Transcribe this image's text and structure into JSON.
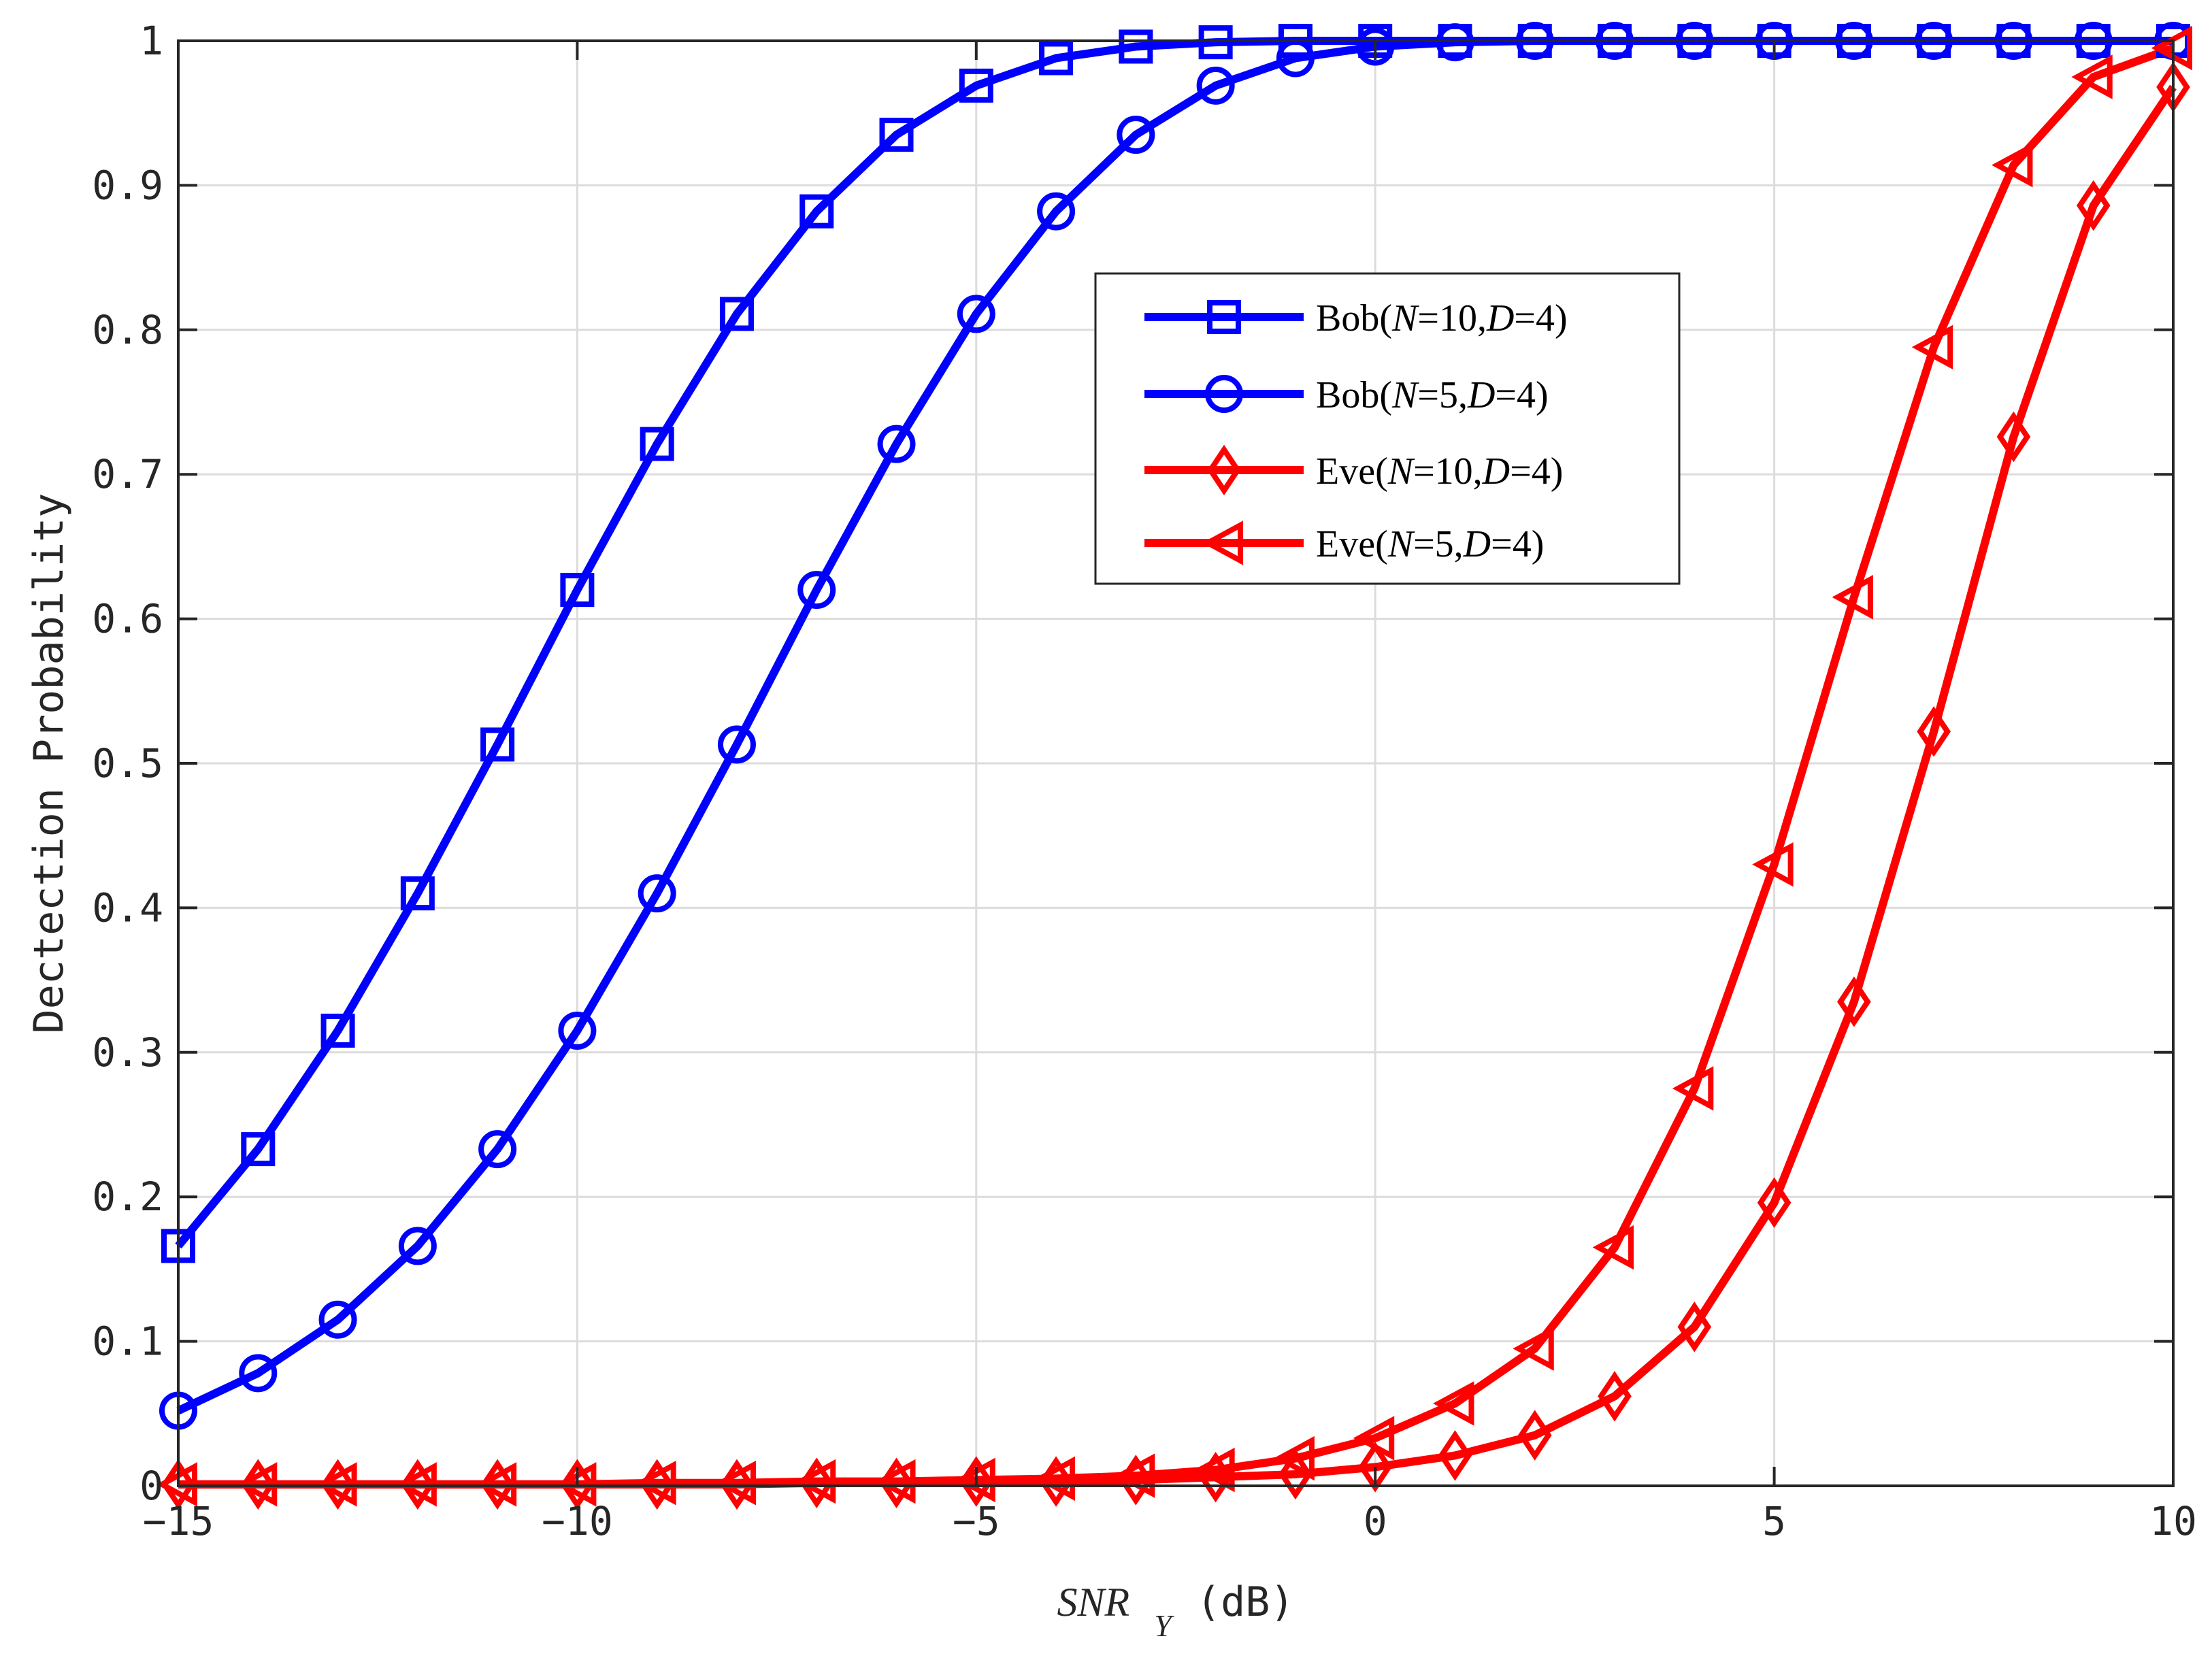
{
  "chart_data": {
    "type": "line",
    "title": "",
    "xlabel": "SNR",
    "xlabel_sub": "Y",
    "xlabel_unit": "(dB)",
    "ylabel": "Dectection Probability",
    "xlim": [
      -15,
      10
    ],
    "ylim": [
      0,
      1
    ],
    "grid": true,
    "legend_position": "upper-center",
    "x_ticks": [
      -15,
      -10,
      -5,
      0,
      5,
      10
    ],
    "x_tick_labels": [
      "−15",
      "−10",
      "−5",
      "0",
      "5",
      "10"
    ],
    "y_ticks": [
      0,
      0.1,
      0.2,
      0.3,
      0.4,
      0.5,
      0.6,
      0.7,
      0.8,
      0.9,
      1
    ],
    "y_tick_labels": [
      "0",
      "0.1",
      "0.2",
      "0.3",
      "0.4",
      "0.5",
      "0.6",
      "0.7",
      "0.8",
      "0.9",
      "1"
    ],
    "x": [
      -15,
      -14,
      -13,
      -12,
      -11,
      -10,
      -9,
      -8,
      -7,
      -6,
      -5,
      -4,
      -3,
      -2,
      -1,
      0,
      1,
      2,
      3,
      4,
      5,
      6,
      7,
      8,
      9,
      10
    ],
    "series": [
      {
        "name": "Bob(N=10,D=4)",
        "legend_parts": [
          [
            "Bob(",
            ""
          ],
          [
            "N",
            "it"
          ],
          [
            "=10,",
            ""
          ],
          [
            "D",
            "it"
          ],
          [
            "=4)",
            ""
          ]
        ],
        "color": "#0000ff",
        "marker": "square",
        "values": [
          0.166,
          0.233,
          0.315,
          0.41,
          0.513,
          0.62,
          0.721,
          0.811,
          0.882,
          0.935,
          0.969,
          0.988,
          0.996,
          0.999,
          1.0,
          1.0,
          1.0,
          1.0,
          1.0,
          1.0,
          1.0,
          1.0,
          1.0,
          1.0,
          1.0,
          1.0
        ]
      },
      {
        "name": "Bob(N=5,D=4)",
        "legend_parts": [
          [
            "Bob(",
            ""
          ],
          [
            "N",
            "it"
          ],
          [
            "=5,",
            ""
          ],
          [
            "D",
            "it"
          ],
          [
            "=4)",
            ""
          ]
        ],
        "color": "#0000ff",
        "marker": "circle",
        "values": [
          0.052,
          0.078,
          0.115,
          0.166,
          0.233,
          0.315,
          0.41,
          0.513,
          0.62,
          0.721,
          0.811,
          0.882,
          0.935,
          0.969,
          0.988,
          0.996,
          0.999,
          1.0,
          1.0,
          1.0,
          1.0,
          1.0,
          1.0,
          1.0,
          1.0,
          1.0
        ]
      },
      {
        "name": "Eve(N=10,D=4)",
        "legend_parts": [
          [
            "Eve(",
            ""
          ],
          [
            "N",
            "it"
          ],
          [
            "=10,",
            ""
          ],
          [
            "D",
            "it"
          ],
          [
            "=4)",
            ""
          ]
        ],
        "color": "#ff0000",
        "marker": "diamond",
        "values": [
          0.001,
          0.001,
          0.001,
          0.001,
          0.001,
          0.001,
          0.001,
          0.001,
          0.002,
          0.002,
          0.003,
          0.003,
          0.004,
          0.006,
          0.008,
          0.013,
          0.021,
          0.035,
          0.062,
          0.11,
          0.196,
          0.335,
          0.522,
          0.726,
          0.886,
          0.968
        ]
      },
      {
        "name": "Eve(N=5,D=4)",
        "legend_parts": [
          [
            "Eve(",
            ""
          ],
          [
            "N",
            "it"
          ],
          [
            "=5,",
            ""
          ],
          [
            "D",
            "it"
          ],
          [
            "=4)",
            ""
          ]
        ],
        "color": "#ff0000",
        "marker": "triangle-left",
        "values": [
          0.001,
          0.001,
          0.001,
          0.001,
          0.001,
          0.001,
          0.002,
          0.002,
          0.003,
          0.003,
          0.004,
          0.005,
          0.007,
          0.011,
          0.019,
          0.033,
          0.057,
          0.095,
          0.165,
          0.275,
          0.43,
          0.615,
          0.788,
          0.914,
          0.975,
          0.995
        ]
      }
    ]
  }
}
